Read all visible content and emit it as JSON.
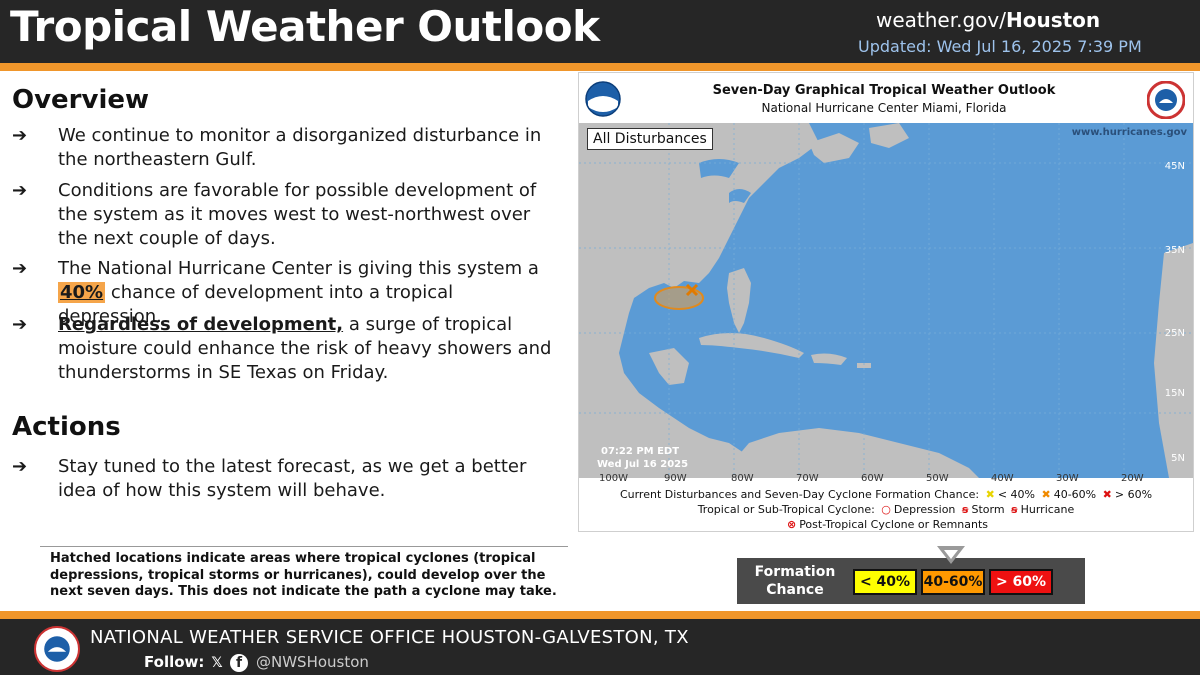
{
  "header": {
    "title": "Tropical Weather Outlook",
    "site_prefix": "weather.gov/",
    "site_office": "Houston",
    "updated": "Updated: Wed Jul 16, 2025 7:39 PM"
  },
  "overview": {
    "heading": "Overview",
    "bullet1": "We continue to monitor a disorganized disturbance in the northeastern Gulf.",
    "bullet2": "Conditions are favorable for possible development of the system as it moves west to west-northwest over the next couple of days.",
    "bullet3_pre": "The National Hurricane Center is giving this system a",
    "bullet3_pct": "40%",
    "bullet3_post": "chance of development into a tropical depression.",
    "bullet4_lead": "Regardless of development,",
    "bullet4_rest": "a surge of tropical moisture could enhance the risk of heavy showers and thunderstorms in SE Texas on Friday."
  },
  "actions": {
    "heading": "Actions",
    "bullet1": "Stay tuned to the latest forecast, as we get a better idea of how this system will behave."
  },
  "note": "Hatched locations indicate areas where tropical cyclones (tropical depressions, tropical storms or hurricanes), could develop over the next seven days. This does not indicate the path a cyclone may take.",
  "nhc": {
    "title": "Seven-Day Graphical Tropical Weather Outlook",
    "subtitle": "National Hurricane Center  Miami, Florida",
    "map_tab": "All Disturbances",
    "map_url": "www.hurricanes.gov",
    "time": "07:22 PM EDT",
    "date": "Wed Jul 16 2025",
    "lat_labels": [
      "45N",
      "35N",
      "25N",
      "15N",
      "5N"
    ],
    "lon_labels": [
      "100W",
      "90W",
      "80W",
      "70W",
      "60W",
      "50W",
      "40W",
      "30W",
      "20W"
    ],
    "legend_line1_label": "Current Disturbances and Seven-Day Cyclone Formation Chance:",
    "legend_lt40": "< 40%",
    "legend_4060": "40-60%",
    "legend_gt60": "> 60%",
    "legend_line2_label": "Tropical or Sub-Tropical Cyclone:",
    "legend_depression": "Depression",
    "legend_storm": "Storm",
    "legend_hurricane": "Hurricane",
    "legend_post": "Post-Tropical Cyclone or Remnants"
  },
  "formation": {
    "label": "Formation Chance",
    "low": "< 40%",
    "mid": "40-60%",
    "high": "> 60%",
    "low_color": "#ffff00",
    "mid_color": "#ff9900",
    "high_color": "#ee1111"
  },
  "footer": {
    "office": "NATIONAL WEATHER SERVICE OFFICE HOUSTON-GALVESTON, TX",
    "follow": "Follow:",
    "handle": "@NWSHouston"
  },
  "colors": {
    "accent": "#f0962b",
    "header_bg": "#262626",
    "ocean": "#5b9bd5",
    "land": "#bfbfbf"
  }
}
